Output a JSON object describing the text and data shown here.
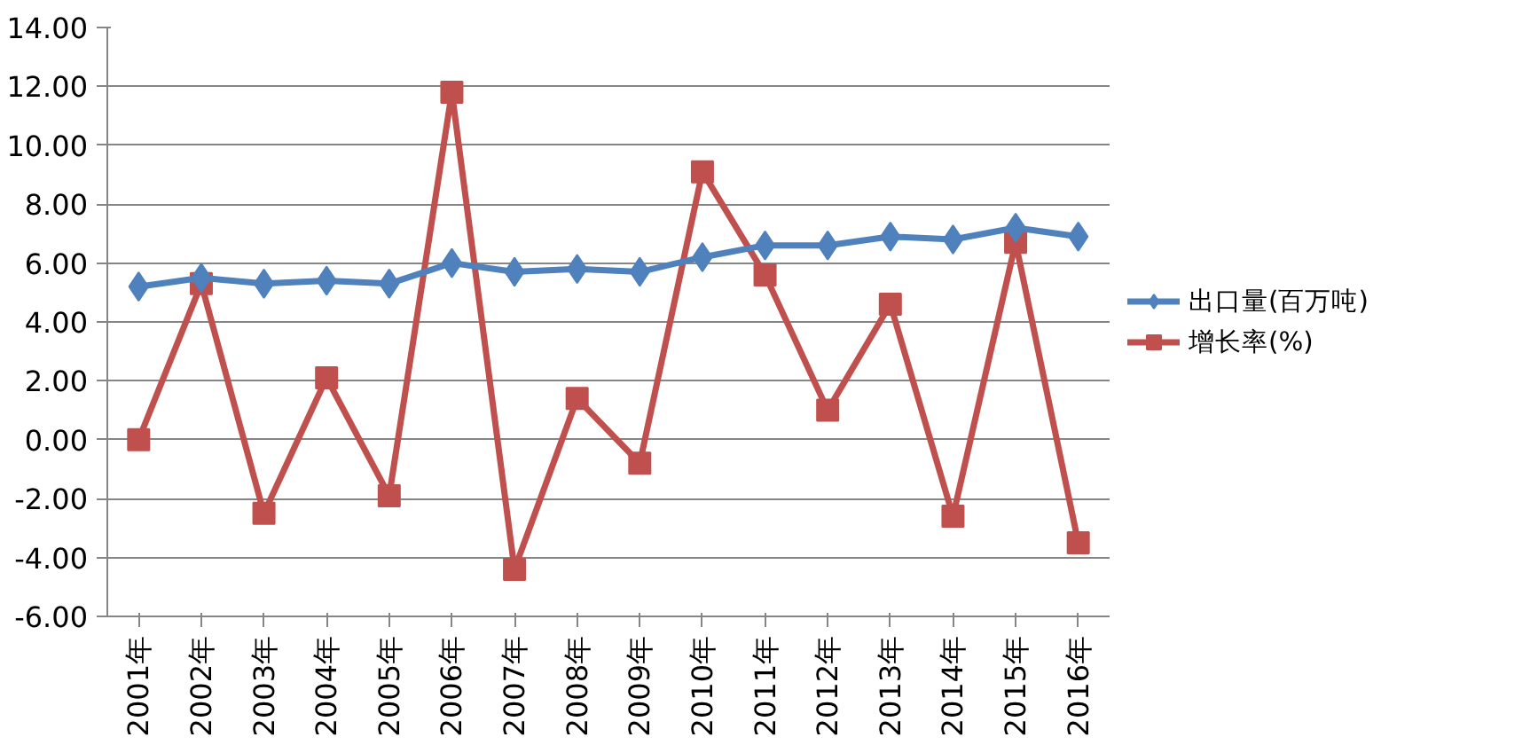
{
  "chart_data": {
    "type": "line",
    "categories": [
      "2001年",
      "2002年",
      "2003年",
      "2004年",
      "2005年",
      "2006年",
      "2007年",
      "2008年",
      "2009年",
      "2010年",
      "2011年",
      "2012年",
      "2013年",
      "2014年",
      "2015年",
      "2016年"
    ],
    "series": [
      {
        "name": "出口量(百万吨)",
        "color": "#4f81bd",
        "marker": "diamond",
        "values": [
          5.2,
          5.5,
          5.3,
          5.4,
          5.3,
          6.0,
          5.7,
          5.8,
          5.7,
          6.2,
          6.6,
          6.6,
          6.9,
          6.8,
          7.2,
          6.9
        ]
      },
      {
        "name": "增长率(%)",
        "color": "#c0504d",
        "marker": "square",
        "values": [
          0.0,
          5.3,
          -2.5,
          2.1,
          -1.9,
          11.8,
          -4.4,
          1.4,
          -0.8,
          9.1,
          5.6,
          1.0,
          4.6,
          -2.6,
          6.7,
          -3.5
        ]
      }
    ],
    "ylim": [
      -6,
      14
    ],
    "yticks": [
      {
        "value": -6,
        "label": "-6.00"
      },
      {
        "value": -4,
        "label": "-4.00"
      },
      {
        "value": -2,
        "label": "-2.00"
      },
      {
        "value": 0,
        "label": "0.00"
      },
      {
        "value": 2,
        "label": "2.00"
      },
      {
        "value": 4,
        "label": "4.00"
      },
      {
        "value": 6,
        "label": "6.00"
      },
      {
        "value": 8,
        "label": "8.00"
      },
      {
        "value": 10,
        "label": "10.00"
      },
      {
        "value": 12,
        "label": "12.00"
      },
      {
        "value": 14,
        "label": "14.00"
      }
    ],
    "grid": "y",
    "legend": "right",
    "line_style": "solid"
  }
}
